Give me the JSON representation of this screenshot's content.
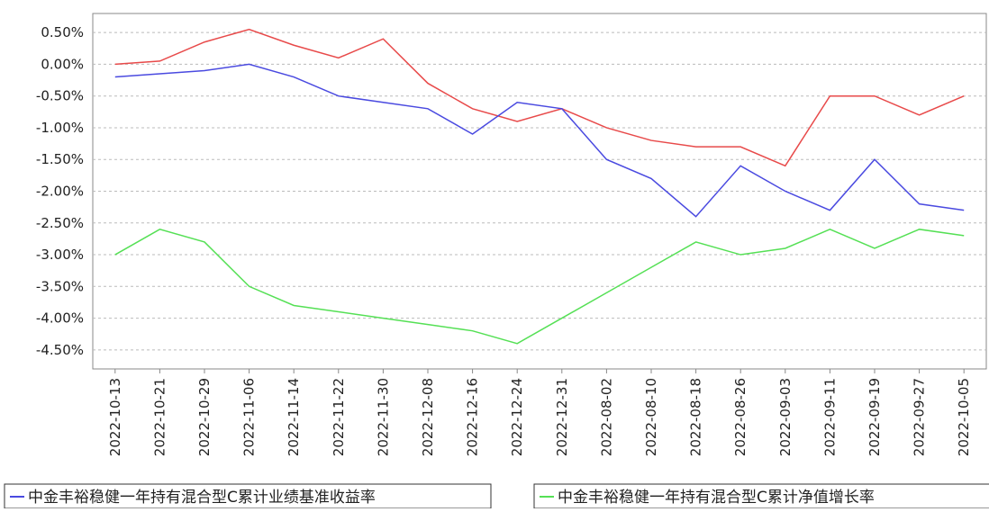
{
  "chart_data": {
    "type": "line",
    "categories": [
      "2022-10-13",
      "2022-10-21",
      "2022-10-29",
      "2022-11-06",
      "2022-11-14",
      "2022-11-22",
      "2022-11-30",
      "2022-12-08",
      "2022-12-16",
      "2022-12-24",
      "2022-12-31",
      "2022-08-02",
      "2022-08-10",
      "2022-08-18",
      "2022-08-26",
      "2022-09-03",
      "2022-09-11",
      "2022-09-19",
      "2022-09-27",
      "2022-10-05"
    ],
    "series": [
      {
        "color": "#e84a4a",
        "values": [
          0.0,
          0.05,
          0.35,
          0.55,
          0.3,
          0.1,
          0.4,
          -0.3,
          -0.7,
          -0.9,
          -0.7,
          -1.0,
          -1.2,
          -1.3,
          -1.3,
          -1.6,
          -0.5,
          -0.5,
          -0.8,
          -0.5
        ]
      },
      {
        "name": "中金丰裕稳健一年持有混合型C累计业绩基准收益率",
        "color": "#4a4ae0",
        "values": [
          -0.2,
          -0.15,
          -0.1,
          0.0,
          -0.2,
          -0.5,
          -0.6,
          -0.7,
          -1.1,
          -0.6,
          -0.7,
          -1.5,
          -1.8,
          -2.4,
          -1.6,
          -2.0,
          -2.3,
          -1.5,
          -2.2,
          -2.3
        ]
      },
      {
        "name": "中金丰裕稳健一年持有混合型C累计净值增长率",
        "color": "#55e055",
        "values": [
          -3.0,
          -2.6,
          -2.8,
          -3.5,
          -3.8,
          -3.9,
          -4.0,
          -4.1,
          -4.2,
          -4.4,
          -4.0,
          -3.6,
          -3.2,
          -2.8,
          -3.0,
          -2.9,
          -2.6,
          -2.9,
          -2.6,
          -2.7
        ]
      }
    ],
    "ylim": [
      -4.8,
      0.8
    ],
    "yticks": [
      {
        "value": 0.5,
        "label": "0.50%"
      },
      {
        "value": 0,
        "label": "0.00%"
      },
      {
        "value": -0.5,
        "label": "-0.50%"
      },
      {
        "value": -1,
        "label": "-1.00%"
      },
      {
        "value": -1.5,
        "label": "-1.50%"
      },
      {
        "value": -2,
        "label": "-2.00%"
      },
      {
        "value": -2.5,
        "label": "-2.50%"
      },
      {
        "value": -3,
        "label": "-3.00%"
      },
      {
        "value": -3.5,
        "label": "-3.50%"
      },
      {
        "value": -4,
        "label": "-4.00%"
      },
      {
        "value": -4.5,
        "label": "-4.50%"
      }
    ],
    "grid": true
  }
}
